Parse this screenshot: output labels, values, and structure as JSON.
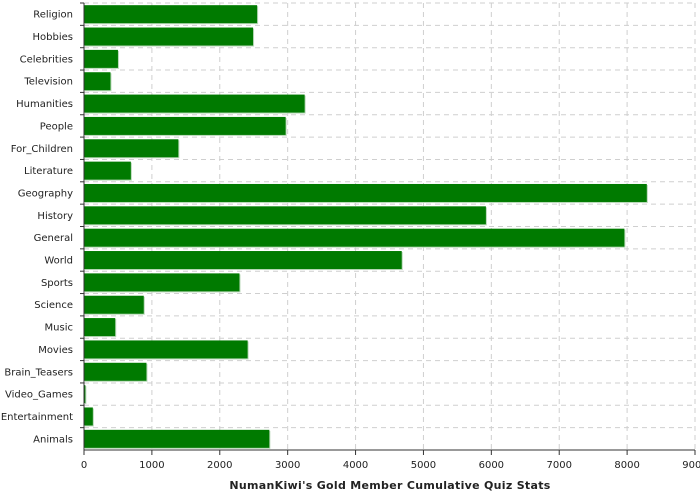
{
  "chart_data": {
    "type": "bar",
    "orientation": "horizontal",
    "categories": [
      "Religion",
      "Hobbies",
      "Celebrities",
      "Television",
      "Humanities",
      "People",
      "For_Children",
      "Literature",
      "Geography",
      "History",
      "General",
      "World",
      "Sports",
      "Science",
      "Music",
      "Movies",
      "Brain_Teasers",
      "Video_Games",
      "Entertainment",
      "Animals"
    ],
    "values": [
      2550,
      2490,
      500,
      390,
      3250,
      2970,
      1390,
      690,
      8290,
      5920,
      7960,
      4680,
      2290,
      880,
      460,
      2410,
      920,
      20,
      130,
      2730
    ],
    "xlabel": "NumanKiwi's Gold Member Cumulative Quiz Stats",
    "ylabel": "",
    "xlim": [
      0,
      9000
    ],
    "xticks": [
      "0",
      "1000",
      "2000",
      "3000",
      "4000",
      "5000",
      "6000",
      "7000",
      "8000",
      "9000"
    ],
    "grid": true,
    "colors": {
      "bar": "#007a00",
      "bar_shadow": "#b9d9b9",
      "grid": "#cfcfcf",
      "axis": "#333333"
    }
  }
}
